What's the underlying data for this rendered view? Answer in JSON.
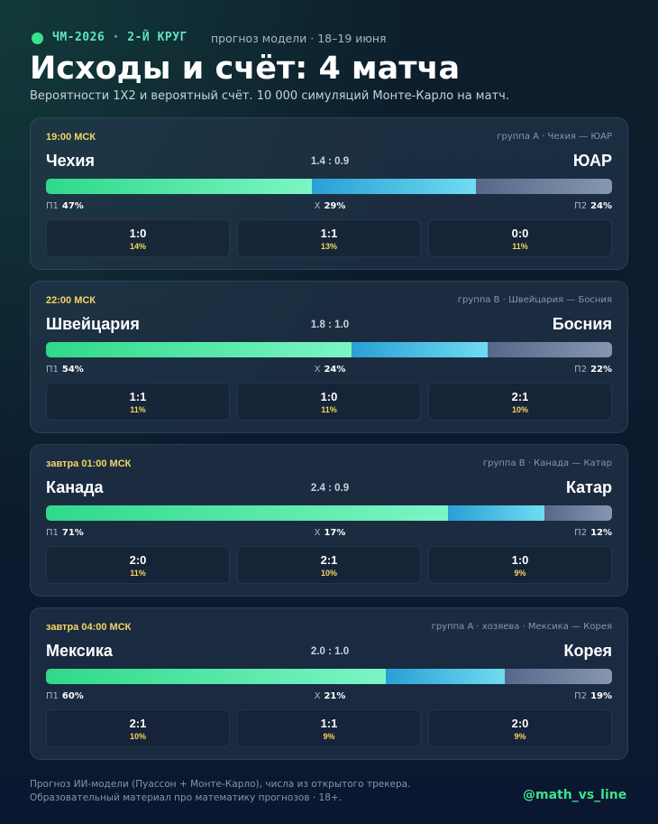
{
  "header": {
    "tag": "ЧМ-2026 · 2-Й КРУГ",
    "note": "прогноз модели · 18–19 июня",
    "title": "Исходы и счёт: 4 матча",
    "subtitle": "Вероятности 1X2 и вероятный счёт. 10 000 симуляций Монте-Карло на матч."
  },
  "matches": [
    {
      "time": "19:00 МСК",
      "group": "группа A · Чехия — ЮАР",
      "home": "Чехия",
      "away": "ЮАР",
      "expected": "1.4 : 0.9",
      "outcomes": [
        {
          "label": "П1",
          "value": 47,
          "value_label": "47%"
        },
        {
          "label": "X",
          "value": 29,
          "value_label": "29%"
        },
        {
          "label": "П2",
          "value": 24,
          "value_label": "24%"
        }
      ],
      "scores": [
        {
          "score": "1:0",
          "prob": "14%"
        },
        {
          "score": "1:1",
          "prob": "13%"
        },
        {
          "score": "0:0",
          "prob": "11%"
        }
      ]
    },
    {
      "time": "22:00 МСК",
      "group": "группа B · Швейцария — Босния",
      "home": "Швейцария",
      "away": "Босния",
      "expected": "1.8 : 1.0",
      "outcomes": [
        {
          "label": "П1",
          "value": 54,
          "value_label": "54%"
        },
        {
          "label": "X",
          "value": 24,
          "value_label": "24%"
        },
        {
          "label": "П2",
          "value": 22,
          "value_label": "22%"
        }
      ],
      "scores": [
        {
          "score": "1:1",
          "prob": "11%"
        },
        {
          "score": "1:0",
          "prob": "11%"
        },
        {
          "score": "2:1",
          "prob": "10%"
        }
      ]
    },
    {
      "time": "завтра 01:00 МСК",
      "group": "группа B · Канада — Катар",
      "home": "Канада",
      "away": "Катар",
      "expected": "2.4 : 0.9",
      "outcomes": [
        {
          "label": "П1",
          "value": 71,
          "value_label": "71%"
        },
        {
          "label": "X",
          "value": 17,
          "value_label": "17%"
        },
        {
          "label": "П2",
          "value": 12,
          "value_label": "12%"
        }
      ],
      "scores": [
        {
          "score": "2:0",
          "prob": "11%"
        },
        {
          "score": "2:1",
          "prob": "10%"
        },
        {
          "score": "1:0",
          "prob": "9%"
        }
      ]
    },
    {
      "time": "завтра 04:00 МСК",
      "group": "группа A · хозяева · Мексика — Корея",
      "home": "Мексика",
      "away": "Корея",
      "expected": "2.0 : 1.0",
      "outcomes": [
        {
          "label": "П1",
          "value": 60,
          "value_label": "60%"
        },
        {
          "label": "X",
          "value": 21,
          "value_label": "21%"
        },
        {
          "label": "П2",
          "value": 19,
          "value_label": "19%"
        }
      ],
      "scores": [
        {
          "score": "2:1",
          "prob": "10%"
        },
        {
          "score": "1:1",
          "prob": "9%"
        },
        {
          "score": "2:0",
          "prob": "9%"
        }
      ]
    }
  ],
  "footer": {
    "note": "Прогноз ИИ-модели (Пуассон + Монте-Карло), числа из открытого трекера. Образовательный материал про математику прогнозов · 18+.",
    "handle": "@math_vs_line"
  }
}
